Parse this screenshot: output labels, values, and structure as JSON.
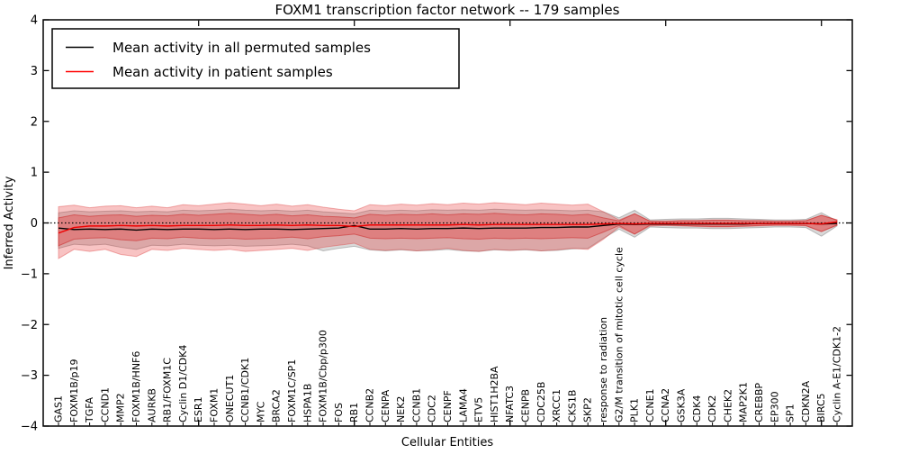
{
  "chart_data": {
    "type": "line",
    "title": "FOXM1 transcription factor network -- 179 samples",
    "xlabel": "Cellular Entities",
    "ylabel": "Inferred Activity",
    "ylim": [
      -4,
      4
    ],
    "ytick_labels": [
      "4",
      "3",
      "2",
      "1",
      "0",
      "−1",
      "−2",
      "−3",
      "−4"
    ],
    "ytick_values": [
      4,
      3,
      2,
      1,
      0,
      -1,
      -2,
      -3,
      -4
    ],
    "grid": false,
    "zero_line": {
      "value": 0,
      "style": "dotted",
      "color": "#000000"
    },
    "legend": {
      "position": "upper left",
      "entries": [
        {
          "label": "Mean activity in all permuted samples",
          "color": "#000000"
        },
        {
          "label": "Mean activity in patient samples",
          "color": "#ff0000"
        }
      ]
    },
    "categories": [
      "GAS1",
      "FOXM1B/p19",
      "TGFA",
      "CCND1",
      "MMP2",
      "FOXM1B/HNF6",
      "AURKB",
      "RB1/FOXM1C",
      "Cyclin D1/CDK4",
      "ESR1",
      "FOXM1",
      "ONECUT1",
      "CCNB1/CDK1",
      "MYC",
      "BRCA2",
      "FOXM1C/SP1",
      "HSPA1B",
      "FOXM1B/Cbp/p300",
      "FOS",
      "RB1",
      "CCNB2",
      "CENPA",
      "NEK2",
      "CCNB1",
      "CDC2",
      "CENPF",
      "LAMA4",
      "ETV5",
      "HIST1H2BA",
      "NFATC3",
      "CENPB",
      "CDC25B",
      "XRCC1",
      "CKS1B",
      "SKP2",
      "response to radiation",
      "G2/M transition of mitotic cell cycle",
      "PLK1",
      "CCNE1",
      "CCNA2",
      "GSK3A",
      "CDK4",
      "CDK2",
      "CHEK2",
      "MAP2K1",
      "CREBBP",
      "EP300",
      "SP1",
      "CDKN2A",
      "BIRC5",
      "Cyclin A-E1/CDK1-2"
    ],
    "series": [
      {
        "name": "Mean activity in all permuted samples",
        "color": "#000000",
        "values": [
          -0.1,
          -0.13,
          -0.12,
          -0.13,
          -0.12,
          -0.14,
          -0.12,
          -0.13,
          -0.12,
          -0.12,
          -0.13,
          -0.12,
          -0.13,
          -0.12,
          -0.12,
          -0.13,
          -0.12,
          -0.11,
          -0.1,
          -0.05,
          -0.12,
          -0.12,
          -0.11,
          -0.12,
          -0.11,
          -0.11,
          -0.1,
          -0.11,
          -0.1,
          -0.1,
          -0.1,
          -0.09,
          -0.09,
          -0.08,
          -0.08,
          -0.05,
          -0.02,
          -0.03,
          -0.02,
          -0.02,
          -0.02,
          -0.02,
          -0.02,
          -0.02,
          -0.02,
          -0.01,
          -0.01,
          -0.01,
          -0.01,
          -0.02,
          -0.01
        ]
      },
      {
        "name": "Mean activity in patient samples",
        "color": "#ee0000",
        "values": [
          -0.2,
          -0.09,
          -0.06,
          -0.06,
          -0.05,
          -0.06,
          -0.05,
          -0.06,
          -0.05,
          -0.05,
          -0.05,
          -0.04,
          -0.05,
          -0.05,
          -0.04,
          -0.05,
          -0.04,
          -0.05,
          -0.05,
          -0.07,
          -0.04,
          -0.04,
          -0.04,
          -0.04,
          -0.04,
          -0.04,
          -0.03,
          -0.04,
          -0.03,
          -0.03,
          -0.03,
          -0.03,
          -0.03,
          -0.03,
          -0.03,
          -0.02,
          -0.01,
          -0.02,
          -0.01,
          -0.01,
          -0.01,
          -0.01,
          -0.01,
          -0.01,
          -0.01,
          -0.01,
          -0.01,
          -0.01,
          -0.01,
          -0.02,
          0.02
        ]
      }
    ],
    "bands": [
      {
        "name": "permuted-samples-range",
        "fill": "rgba(128,128,128,0.30)",
        "stroke": "rgba(120,120,120,0.45)",
        "top": [
          0.2,
          0.24,
          0.22,
          0.23,
          0.24,
          0.22,
          0.23,
          0.22,
          0.25,
          0.24,
          0.25,
          0.27,
          0.25,
          0.24,
          0.25,
          0.23,
          0.25,
          0.22,
          0.2,
          0.18,
          0.25,
          0.24,
          0.25,
          0.24,
          0.26,
          0.25,
          0.26,
          0.25,
          0.27,
          0.26,
          0.25,
          0.26,
          0.25,
          0.24,
          0.25,
          0.22,
          0.1,
          0.25,
          0.06,
          0.07,
          0.08,
          0.08,
          0.09,
          0.09,
          0.08,
          0.07,
          0.06,
          0.06,
          0.07,
          0.2,
          0.04
        ],
        "bottom": [
          -0.5,
          -0.42,
          -0.44,
          -0.42,
          -0.48,
          -0.52,
          -0.44,
          -0.45,
          -0.42,
          -0.44,
          -0.45,
          -0.44,
          -0.46,
          -0.45,
          -0.44,
          -0.42,
          -0.45,
          -0.55,
          -0.5,
          -0.46,
          -0.53,
          -0.55,
          -0.53,
          -0.55,
          -0.54,
          -0.52,
          -0.55,
          -0.56,
          -0.53,
          -0.54,
          -0.53,
          -0.55,
          -0.54,
          -0.51,
          -0.5,
          -0.3,
          -0.12,
          -0.28,
          -0.08,
          -0.09,
          -0.1,
          -0.1,
          -0.11,
          -0.11,
          -0.1,
          -0.09,
          -0.08,
          -0.08,
          -0.09,
          -0.26,
          -0.06
        ]
      },
      {
        "name": "patient-samples-range-outer",
        "fill": "rgba(230,40,40,0.28)",
        "stroke": "rgba(220,60,60,0.40)",
        "top": [
          0.32,
          0.35,
          0.3,
          0.33,
          0.34,
          0.3,
          0.33,
          0.3,
          0.36,
          0.34,
          0.37,
          0.4,
          0.37,
          0.34,
          0.37,
          0.33,
          0.36,
          0.31,
          0.27,
          0.24,
          0.36,
          0.34,
          0.37,
          0.35,
          0.38,
          0.36,
          0.39,
          0.37,
          0.4,
          0.38,
          0.36,
          0.39,
          0.37,
          0.35,
          0.37,
          0.22,
          0.06,
          0.18,
          0.04,
          0.04,
          0.05,
          0.05,
          0.06,
          0.06,
          0.05,
          0.05,
          0.04,
          0.04,
          0.05,
          0.15,
          0.06
        ],
        "bottom": [
          -0.7,
          -0.52,
          -0.56,
          -0.52,
          -0.62,
          -0.66,
          -0.52,
          -0.54,
          -0.5,
          -0.52,
          -0.54,
          -0.52,
          -0.56,
          -0.54,
          -0.52,
          -0.5,
          -0.54,
          -0.48,
          -0.44,
          -0.4,
          -0.52,
          -0.54,
          -0.52,
          -0.55,
          -0.53,
          -0.5,
          -0.54,
          -0.56,
          -0.52,
          -0.54,
          -0.52,
          -0.55,
          -0.53,
          -0.5,
          -0.52,
          -0.32,
          -0.08,
          -0.22,
          -0.06,
          -0.05,
          -0.06,
          -0.07,
          -0.08,
          -0.08,
          -0.07,
          -0.06,
          -0.05,
          -0.05,
          -0.06,
          -0.17,
          -0.05
        ]
      },
      {
        "name": "patient-samples-range-inner",
        "fill": "rgba(230,40,40,0.30)",
        "stroke": "rgba(200,30,30,0.50)",
        "top": [
          0.1,
          0.16,
          0.13,
          0.15,
          0.16,
          0.13,
          0.15,
          0.14,
          0.17,
          0.15,
          0.17,
          0.19,
          0.17,
          0.15,
          0.17,
          0.14,
          0.16,
          0.13,
          0.12,
          0.1,
          0.17,
          0.15,
          0.17,
          0.16,
          0.18,
          0.16,
          0.18,
          0.17,
          0.19,
          0.17,
          0.16,
          0.18,
          0.17,
          0.15,
          0.17,
          0.1,
          0.04,
          0.18,
          0.03,
          0.03,
          0.04,
          0.04,
          0.05,
          0.05,
          0.04,
          0.04,
          0.03,
          0.03,
          0.04,
          0.15,
          0.06
        ],
        "bottom": [
          -0.45,
          -0.32,
          -0.3,
          -0.29,
          -0.33,
          -0.35,
          -0.3,
          -0.31,
          -0.28,
          -0.3,
          -0.31,
          -0.3,
          -0.32,
          -0.31,
          -0.3,
          -0.28,
          -0.31,
          -0.27,
          -0.25,
          -0.22,
          -0.3,
          -0.31,
          -0.3,
          -0.31,
          -0.3,
          -0.29,
          -0.31,
          -0.32,
          -0.3,
          -0.31,
          -0.3,
          -0.31,
          -0.3,
          -0.29,
          -0.3,
          -0.18,
          -0.05,
          -0.22,
          -0.04,
          -0.04,
          -0.05,
          -0.06,
          -0.07,
          -0.07,
          -0.06,
          -0.05,
          -0.04,
          -0.04,
          -0.05,
          -0.17,
          -0.04
        ]
      }
    ]
  }
}
